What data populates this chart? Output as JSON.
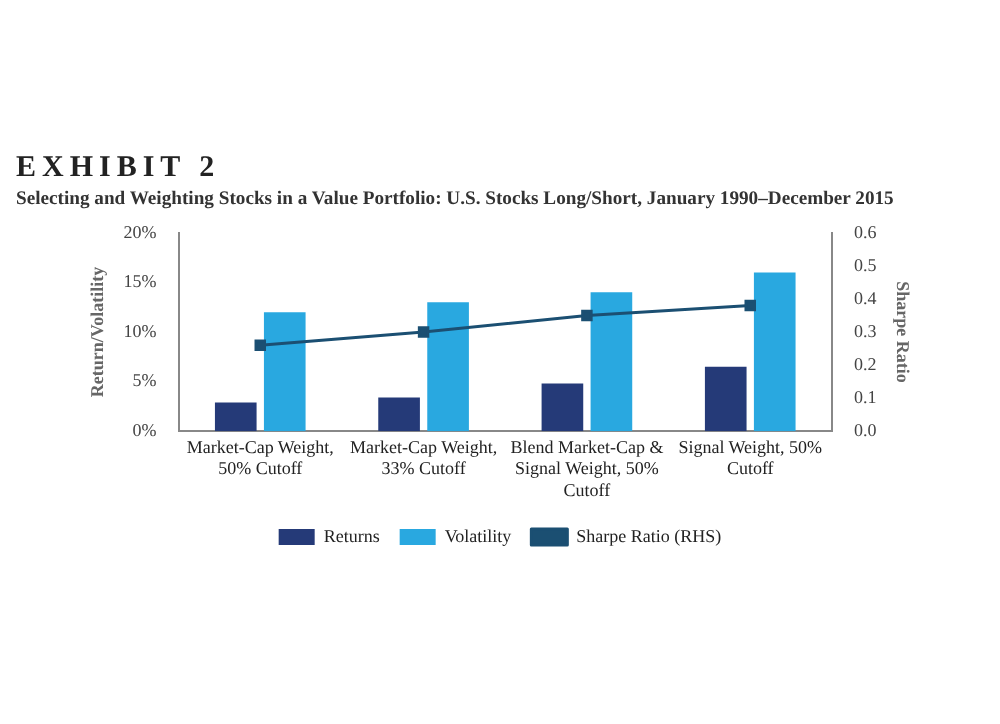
{
  "chart_data": {
    "type": "bar",
    "title": "EXHIBIT 2",
    "subtitle": "Selecting and Weighting Stocks in a Value Portfolio: U.S. Stocks Long/Short, January 1990–December 2015",
    "ylabel": "Return/Volatility",
    "y2label": "Sharpe Ratio",
    "categories": [
      "Market-Cap Weight, 50% Cutoff",
      "Market-Cap Weight, 33% Cutoff",
      "Blend Market-Cap & Signal Weight, 50% Cutoff",
      "Signal Weight, 50% Cutoff"
    ],
    "series": [
      {
        "name": "Returns",
        "color": "#253a78",
        "values": [
          2.9,
          3.4,
          4.8,
          6.5
        ]
      },
      {
        "name": "Volatility",
        "color": "#29a8e0",
        "values": [
          12,
          13,
          14,
          16
        ]
      },
      {
        "name": "Sharpe Ratio (RHS)",
        "color": "#1b4f72",
        "type": "line",
        "axis": "y2",
        "values": [
          0.26,
          0.3,
          0.35,
          0.38
        ]
      }
    ],
    "ylim": [
      0,
      20
    ],
    "yticks": [
      {
        "value": 0,
        "label": "0%"
      },
      {
        "value": 5,
        "label": "5%"
      },
      {
        "value": 10,
        "label": "10%"
      },
      {
        "value": 15,
        "label": "15%"
      },
      {
        "value": 20,
        "label": "20%"
      }
    ],
    "y2lim": [
      0,
      0.6
    ],
    "y2ticks": [
      {
        "value": 0,
        "label": "0.0"
      },
      {
        "value": 0.1,
        "label": "0.1"
      },
      {
        "value": 0.2,
        "label": "0.2"
      },
      {
        "value": 0.3,
        "label": "0.3"
      },
      {
        "value": 0.4,
        "label": "0.4"
      },
      {
        "value": 0.5,
        "label": "0.5"
      },
      {
        "value": 0.6,
        "label": "0.6"
      }
    ],
    "marker": "square",
    "legend": "bottom",
    "grid": false
  }
}
